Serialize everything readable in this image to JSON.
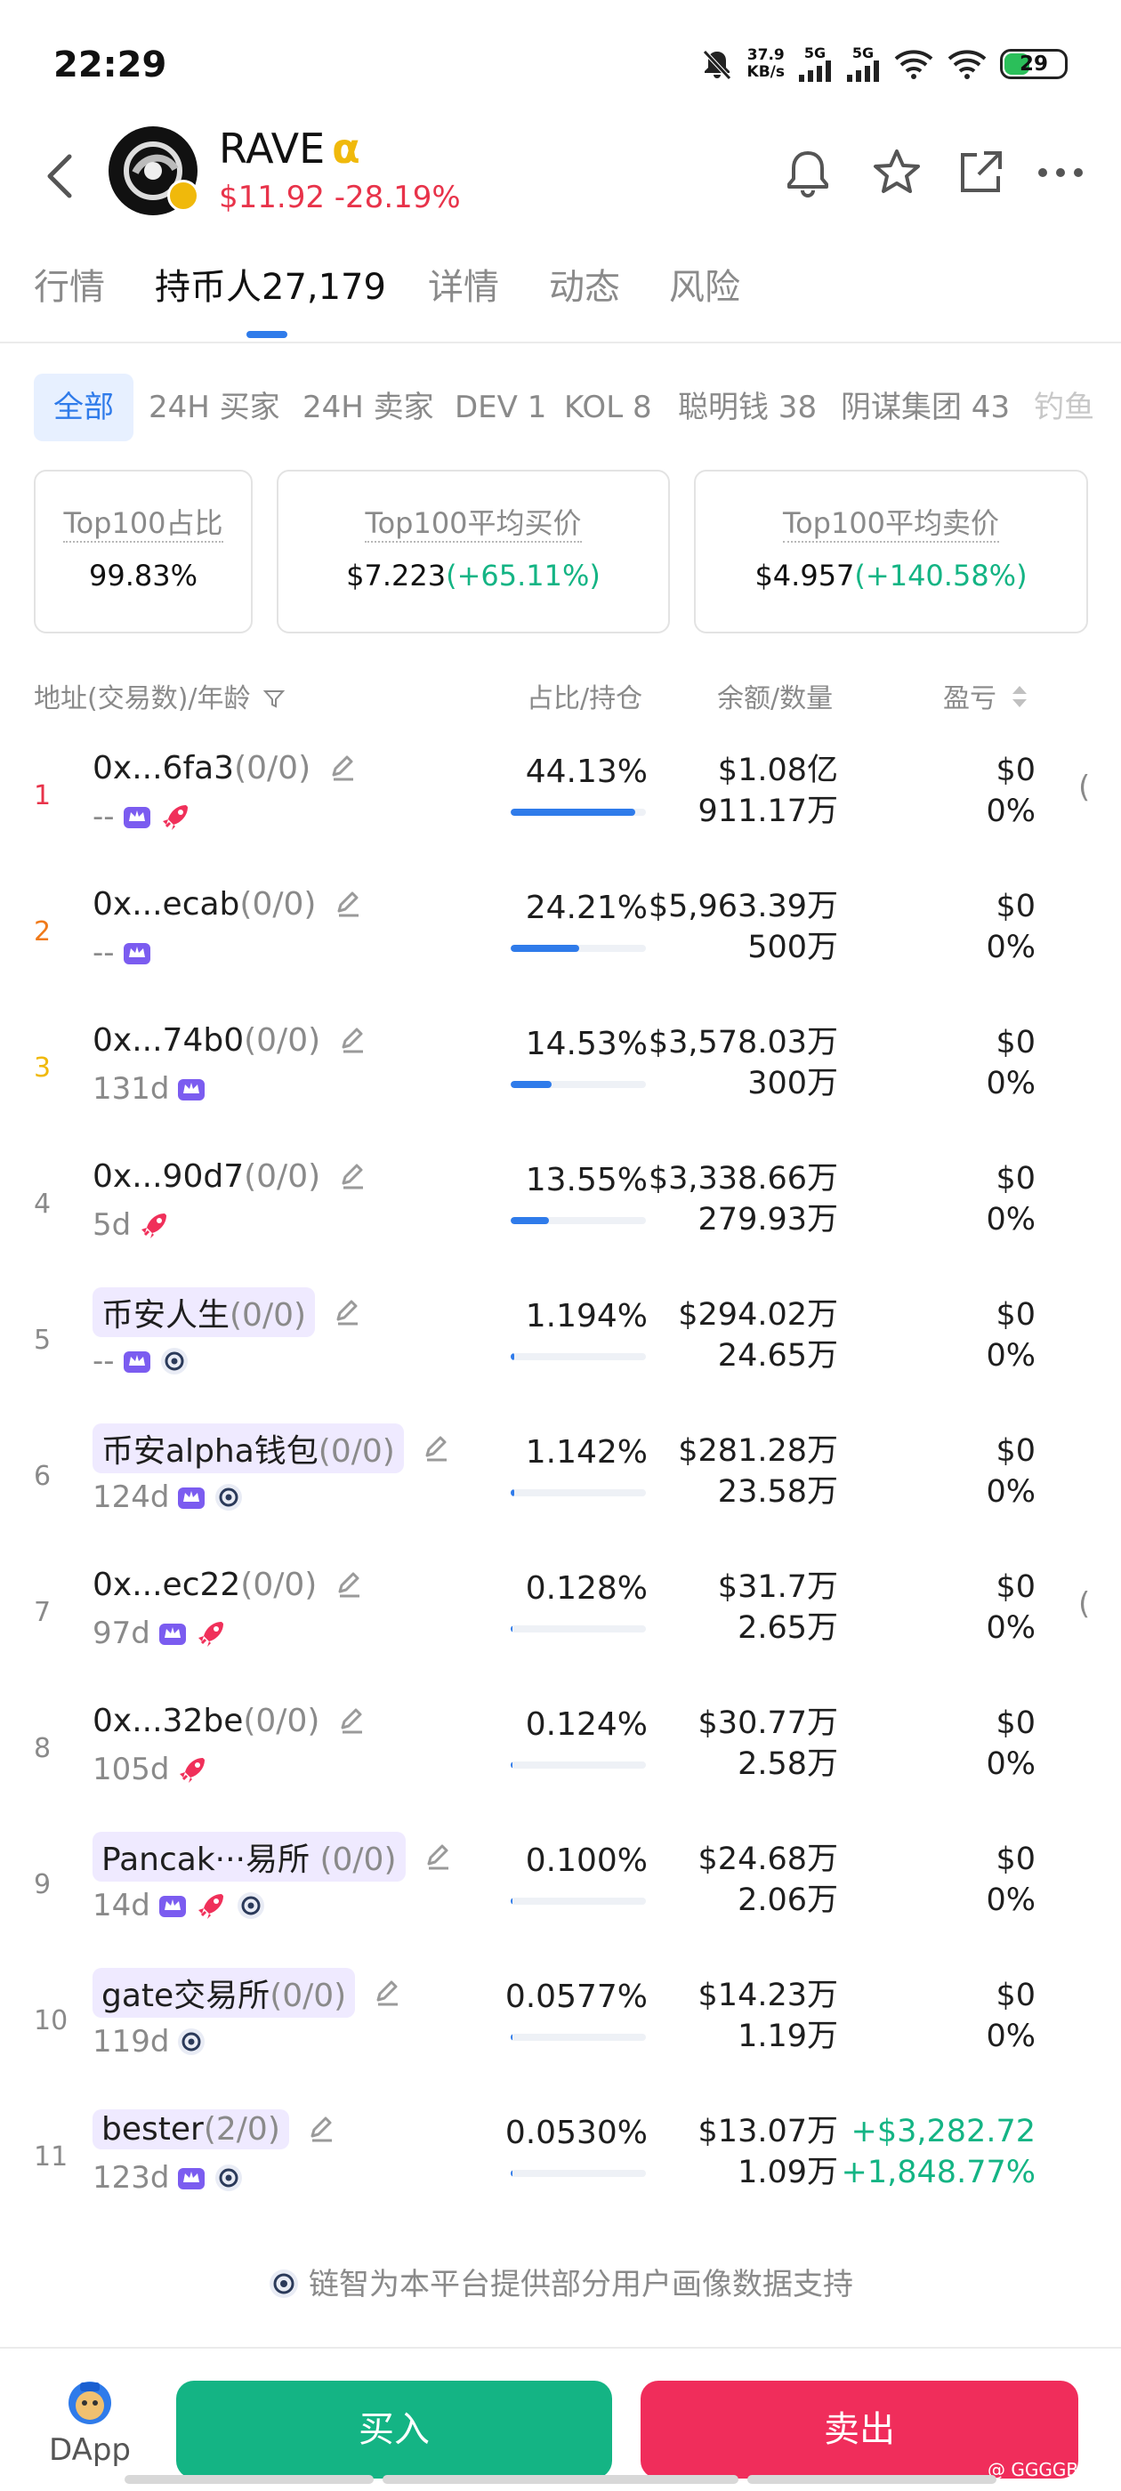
{
  "status_bar": {
    "time": "22:29",
    "net_speed_value": "37.9",
    "net_speed_unit": "KB/s",
    "sim1": "5G",
    "sim2": "5G",
    "battery": "29",
    "icons": [
      "mute-icon",
      "signal-icon",
      "wifi-icon",
      "battery-icon"
    ]
  },
  "header": {
    "token_name": "RAVE",
    "alpha_mark": "α",
    "price": "$11.92",
    "change": "-28.19%",
    "icons": [
      "back-icon",
      "bell-icon",
      "star-icon",
      "share-icon",
      "more-icon"
    ]
  },
  "tabs": [
    "行情",
    "持币人27,179",
    "详情",
    "动态",
    "风险"
  ],
  "active_tab": "持币人27,179",
  "filters": [
    "全部",
    "24H 买家",
    "24H 卖家",
    "DEV 1",
    "KOL 8",
    "聪明钱 38",
    "阴谋集团 43",
    "钓鱼"
  ],
  "stats": [
    {
      "label": "Top100占比",
      "value": "99.83%",
      "change": ""
    },
    {
      "label": "Top100平均买价",
      "value": "$7.223",
      "change": "(+65.11%)"
    },
    {
      "label": "Top100平均卖价",
      "value": "$4.957",
      "change": "(+140.58%)"
    }
  ],
  "table_header": {
    "address": "地址(交易数)/年龄",
    "share": "占比/持仓",
    "balance": "余额/数量",
    "pnl": "盈亏"
  },
  "holders": [
    {
      "rank": "1",
      "address": "0x...6fa3",
      "count": "(0/0)",
      "age": "--",
      "share": "44.13%",
      "share_value": 44.13,
      "balance": "$1.08亿",
      "quantity": "911.17万",
      "pnl": "$0",
      "pnl_pct": "0%",
      "badges": [
        "top",
        "rocket"
      ],
      "named": false,
      "edge": "("
    },
    {
      "rank": "2",
      "address": "0x...ecab",
      "count": "(0/0)",
      "age": "--",
      "share": "24.21%",
      "share_value": 24.21,
      "balance": "$5,963.39万",
      "quantity": "500万",
      "pnl": "$0",
      "pnl_pct": "0%",
      "badges": [
        "top"
      ],
      "named": false,
      "edge": ""
    },
    {
      "rank": "3",
      "address": "0x...74b0",
      "count": "(0/0)",
      "age": "131d",
      "share": "14.53%",
      "share_value": 14.53,
      "balance": "$3,578.03万",
      "quantity": "300万",
      "pnl": "$0",
      "pnl_pct": "0%",
      "badges": [
        "top"
      ],
      "named": false,
      "edge": ""
    },
    {
      "rank": "4",
      "address": "0x...90d7",
      "count": "(0/0)",
      "age": "5d",
      "share": "13.55%",
      "share_value": 13.55,
      "balance": "$3,338.66万",
      "quantity": "279.93万",
      "pnl": "$0",
      "pnl_pct": "0%",
      "badges": [
        "rocket"
      ],
      "named": false,
      "edge": ""
    },
    {
      "rank": "5",
      "address": "币安人生",
      "count": "(0/0)",
      "age": "--",
      "share": "1.194%",
      "share_value": 1.194,
      "balance": "$294.02万",
      "quantity": "24.65万",
      "pnl": "$0",
      "pnl_pct": "0%",
      "badges": [
        "top",
        "chain"
      ],
      "named": true,
      "edge": ""
    },
    {
      "rank": "6",
      "address": "币安alpha钱包",
      "count": "(0/0)",
      "age": "124d",
      "share": "1.142%",
      "share_value": 1.142,
      "balance": "$281.28万",
      "quantity": "23.58万",
      "pnl": "$0",
      "pnl_pct": "0%",
      "badges": [
        "top",
        "chain"
      ],
      "named": true,
      "edge": ""
    },
    {
      "rank": "7",
      "address": "0x...ec22",
      "count": "(0/0)",
      "age": "97d",
      "share": "0.128%",
      "share_value": 0.128,
      "balance": "$31.7万",
      "quantity": "2.65万",
      "pnl": "$0",
      "pnl_pct": "0%",
      "badges": [
        "top",
        "rocket"
      ],
      "named": false,
      "edge": "("
    },
    {
      "rank": "8",
      "address": "0x...32be",
      "count": "(0/0)",
      "age": "105d",
      "share": "0.124%",
      "share_value": 0.124,
      "balance": "$30.77万",
      "quantity": "2.58万",
      "pnl": "$0",
      "pnl_pct": "0%",
      "badges": [
        "rocket"
      ],
      "named": false,
      "edge": ""
    },
    {
      "rank": "9",
      "address": "Pancak···易所",
      "count": " (0/0)",
      "age": "14d",
      "share": "0.100%",
      "share_value": 0.1,
      "balance": "$24.68万",
      "quantity": "2.06万",
      "pnl": "$0",
      "pnl_pct": "0%",
      "badges": [
        "top",
        "rocket",
        "chain"
      ],
      "named": true,
      "edge": ""
    },
    {
      "rank": "10",
      "address": "gate交易所",
      "count": "(0/0)",
      "age": "119d",
      "share": "0.0577%",
      "share_value": 0.0577,
      "balance": "$14.23万",
      "quantity": "1.19万",
      "pnl": "$0",
      "pnl_pct": "0%",
      "badges": [
        "chain"
      ],
      "named": true,
      "edge": ""
    },
    {
      "rank": "11",
      "address": "bester",
      "count_prefix": "(",
      "count_green": "2",
      "count_suffix": "/0)",
      "count": "",
      "age": "123d",
      "share": "0.0530%",
      "share_value": 0.053,
      "balance": "$13.07万",
      "quantity": "1.09万",
      "pnl": "+$3,282.72",
      "pnl_pct": "+1,848.77%",
      "badges": [
        "top",
        "chain"
      ],
      "named": true,
      "edge": "",
      "pnl_positive": true
    }
  ],
  "footer_note": "链智为本平台提供部分用户画像数据支持",
  "bottom": {
    "dapp_label": "DApp",
    "buy_label": "买入",
    "sell_label": "卖出",
    "watermark": "@ GGGGB"
  },
  "colors": {
    "accent": "#2f7bea",
    "down": "#e8334a",
    "up": "#14b484",
    "sell": "#f02d5b",
    "gold": "#f0b90b"
  }
}
